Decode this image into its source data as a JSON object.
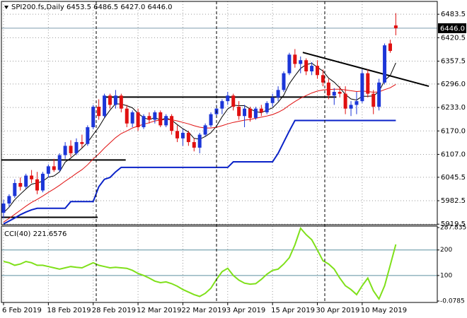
{
  "chart_data": {
    "type": "candlestick",
    "title": "SPI200.fs,Daily  6453.5 6486.5 6427.0 6446.0",
    "categories": [
      "6 Feb 2019",
      null,
      null,
      null,
      null,
      null,
      null,
      null,
      "18 Feb 2019",
      null,
      null,
      null,
      null,
      null,
      null,
      null,
      "28 Feb 2019",
      null,
      null,
      null,
      null,
      null,
      null,
      null,
      "12 Mar 2019",
      null,
      null,
      null,
      null,
      null,
      null,
      null,
      "22 Mar 2019",
      null,
      null,
      null,
      null,
      null,
      null,
      null,
      "3 Apr 2019",
      null,
      null,
      null,
      null,
      null,
      null,
      null,
      "15 Apr 2019",
      null,
      null,
      null,
      null,
      null,
      null,
      null,
      "30 Apr 2019",
      null,
      null,
      null,
      null,
      null,
      null,
      null,
      "10 May 2019",
      null,
      null,
      null,
      null,
      null,
      null
    ],
    "open": [
      5950,
      5975,
      5995,
      6030,
      6020,
      6050,
      6040,
      6010,
      6055,
      6075,
      6065,
      6105,
      6130,
      6110,
      6140,
      6135,
      6180,
      6235,
      6210,
      6265,
      6240,
      6265,
      6230,
      6190,
      6220,
      6180,
      6210,
      6200,
      6220,
      6185,
      6210,
      6170,
      6150,
      6165,
      6140,
      6125,
      6160,
      6185,
      6215,
      6230,
      6250,
      6265,
      6235,
      6210,
      6230,
      6205,
      6230,
      6220,
      6245,
      6260,
      6280,
      6325,
      6375,
      6350,
      6360,
      6330,
      6345,
      6320,
      6300,
      6265,
      6275,
      6270,
      6230,
      6240,
      6250,
      6325,
      6270,
      6235,
      6300,
      6405,
      6453.5
    ],
    "high": [
      5985,
      6000,
      6040,
      6045,
      6055,
      6065,
      6060,
      6060,
      6080,
      6095,
      6110,
      6140,
      6145,
      6150,
      6160,
      6185,
      6240,
      6255,
      6270,
      6270,
      6280,
      6270,
      6240,
      6225,
      6230,
      6215,
      6220,
      6225,
      6225,
      6215,
      6215,
      6185,
      6175,
      6170,
      6150,
      6165,
      6190,
      6220,
      6240,
      6255,
      6275,
      6270,
      6250,
      6240,
      6235,
      6235,
      6240,
      6250,
      6270,
      6290,
      6330,
      6380,
      6390,
      6370,
      6365,
      6355,
      6360,
      6335,
      6310,
      6285,
      6290,
      6290,
      6250,
      6275,
      6335,
      6335,
      6280,
      6310,
      6405,
      6415,
      6486.5
    ],
    "low": [
      5935,
      5965,
      5990,
      6010,
      6015,
      6030,
      6000,
      6005,
      6045,
      6060,
      6060,
      6095,
      6100,
      6105,
      6125,
      6130,
      6175,
      6200,
      6205,
      6230,
      6230,
      6220,
      6180,
      6180,
      6170,
      6175,
      6190,
      6190,
      6180,
      6180,
      6160,
      6140,
      6130,
      6130,
      6115,
      6110,
      6155,
      6180,
      6205,
      6215,
      6240,
      6225,
      6200,
      6180,
      6195,
      6200,
      6210,
      6215,
      6235,
      6250,
      6275,
      6320,
      6340,
      6325,
      6320,
      6320,
      6310,
      6290,
      6255,
      6240,
      6260,
      6215,
      6210,
      6215,
      6245,
      6260,
      6215,
      6225,
      6295,
      6380,
      6427
    ],
    "close": [
      5975,
      5995,
      6030,
      6020,
      6050,
      6040,
      6010,
      6055,
      6075,
      6065,
      6105,
      6130,
      6110,
      6140,
      6135,
      6180,
      6235,
      6210,
      6265,
      6240,
      6265,
      6230,
      6190,
      6220,
      6180,
      6210,
      6200,
      6220,
      6185,
      6210,
      6170,
      6150,
      6165,
      6140,
      6125,
      6160,
      6185,
      6215,
      6230,
      6250,
      6265,
      6235,
      6210,
      6230,
      6205,
      6230,
      6220,
      6245,
      6260,
      6280,
      6325,
      6375,
      6350,
      6360,
      6330,
      6345,
      6320,
      6300,
      6265,
      6275,
      6270,
      6230,
      6240,
      6250,
      6325,
      6270,
      6235,
      6300,
      6400,
      6385,
      6446
    ],
    "up_color": "#1c36d8",
    "down_color": "#e01010",
    "ylim": [
      5918,
      6518
    ],
    "yticks": [
      6483.5,
      6420.5,
      6357.5,
      {
        "value": 6296,
        "label": "6296.0"
      },
      {
        "value": 6233,
        "label": "6233.0"
      },
      {
        "value": 6170,
        "label": "6170.0"
      },
      {
        "value": 6107,
        "label": "6107.0"
      },
      6045.5,
      5982.5,
      5919.5
    ],
    "grid": true,
    "overlays": [
      {
        "color": "#000000",
        "width": 1,
        "values": [
          5950,
          5965,
          5985,
          6000,
          6014,
          6027,
          6030,
          6035,
          6046,
          6049,
          6060,
          6086,
          6097,
          6110,
          6124,
          6139,
          6160,
          6180,
          6205,
          6226,
          6243,
          6242,
          6238,
          6232,
          6217,
          6206,
          6200,
          6206,
          6199,
          6205,
          6199,
          6187,
          6176,
          6167,
          6150,
          6148,
          6155,
          6165,
          6183,
          6208,
          6229,
          6239,
          6238,
          6238,
          6229,
          6222,
          6219,
          6226,
          6232,
          6247,
          6266,
          6297,
          6318,
          6338,
          6348,
          6352,
          6341,
          6331,
          6312,
          6301,
          6286,
          6268,
          6256,
          6253,
          6263,
          6263,
          6264,
          6276,
          6306,
          6319,
          6353
        ]
      },
      {
        "color": "#e01010",
        "width": 1,
        "values": [
          5925,
          5935,
          5946,
          5957,
          5968,
          5978,
          5986,
          5995,
          6005,
          6014,
          6024,
          6035,
          6045,
          6056,
          6066,
          6079,
          6095,
          6108,
          6124,
          6138,
          6152,
          6163,
          6170,
          6178,
          6183,
          6188,
          6192,
          6197,
          6199,
          6201,
          6200,
          6197,
          6193,
          6189,
          6184,
          6180,
          6178,
          6178,
          6180,
          6184,
          6189,
          6193,
          6196,
          6199,
          6201,
          6204,
          6207,
          6210,
          6214,
          6220,
          6228,
          6239,
          6249,
          6258,
          6265,
          6272,
          6277,
          6280,
          6281,
          6282,
          6282,
          6280,
          6278,
          6276,
          6277,
          6276,
          6274,
          6275,
          6281,
          6286,
          6295
        ]
      },
      {
        "color": "#0a22c8",
        "width": 2,
        "values": [
          5920,
          5928,
          5936,
          5945,
          5952,
          5958,
          5962,
          5962,
          5962,
          5962,
          5962,
          5962,
          5980,
          5980,
          5980,
          5980,
          5980,
          6020,
          6040,
          6045,
          6060,
          6072,
          6072,
          6072,
          6072,
          6072,
          6072,
          6072,
          6072,
          6072,
          6072,
          6072,
          6072,
          6072,
          6072,
          6072,
          6072,
          6072,
          6072,
          6072,
          6072,
          6087,
          6087,
          6087,
          6087,
          6087,
          6087,
          6087,
          6087,
          6110,
          6140,
          6170,
          6198,
          6198,
          6198,
          6198,
          6198,
          6198,
          6198,
          6198,
          6198,
          6198,
          6198,
          6198,
          6198,
          6198,
          6198,
          6198,
          6198,
          6198,
          6198
        ]
      }
    ],
    "trend_lines": [
      {
        "x": [
          -0.4,
          21.8
        ],
        "y": [
          6092,
          6092
        ]
      },
      {
        "x": [
          -0.4,
          16.8
        ],
        "y": [
          5938,
          5938
        ]
      },
      {
        "x": [
          18.1,
          59.4
        ],
        "y": [
          6261,
          6261
        ]
      },
      {
        "x": [
          53.4,
          75.9
        ],
        "y": [
          6381,
          6290
        ]
      }
    ],
    "last_price": {
      "value": 6446,
      "label": "6446.0"
    },
    "indicator": {
      "type": "line",
      "title": "CCI(40) 221.6576",
      "color": "#7fe01a",
      "values": [
        155,
        150,
        140,
        145,
        155,
        150,
        140,
        140,
        135,
        130,
        125,
        130,
        135,
        132,
        130,
        140,
        150,
        140,
        135,
        130,
        132,
        130,
        128,
        120,
        108,
        100,
        90,
        78,
        72,
        75,
        68,
        58,
        45,
        35,
        25,
        18,
        30,
        50,
        85,
        115,
        128,
        100,
        82,
        70,
        66,
        68,
        85,
        105,
        120,
        125,
        145,
        170,
        220,
        285,
        260,
        240,
        200,
        158,
        145,
        125,
        90,
        60,
        45,
        25,
        60,
        90,
        40,
        8,
        60,
        140,
        221.6576
      ],
      "ylim": [
        -0.0785,
        287.8357
      ],
      "yticks": [
        287.8357,
        200,
        100,
        -0.0785
      ],
      "levels": [
        200,
        100
      ],
      "level_color": "#5c8fa0"
    }
  }
}
